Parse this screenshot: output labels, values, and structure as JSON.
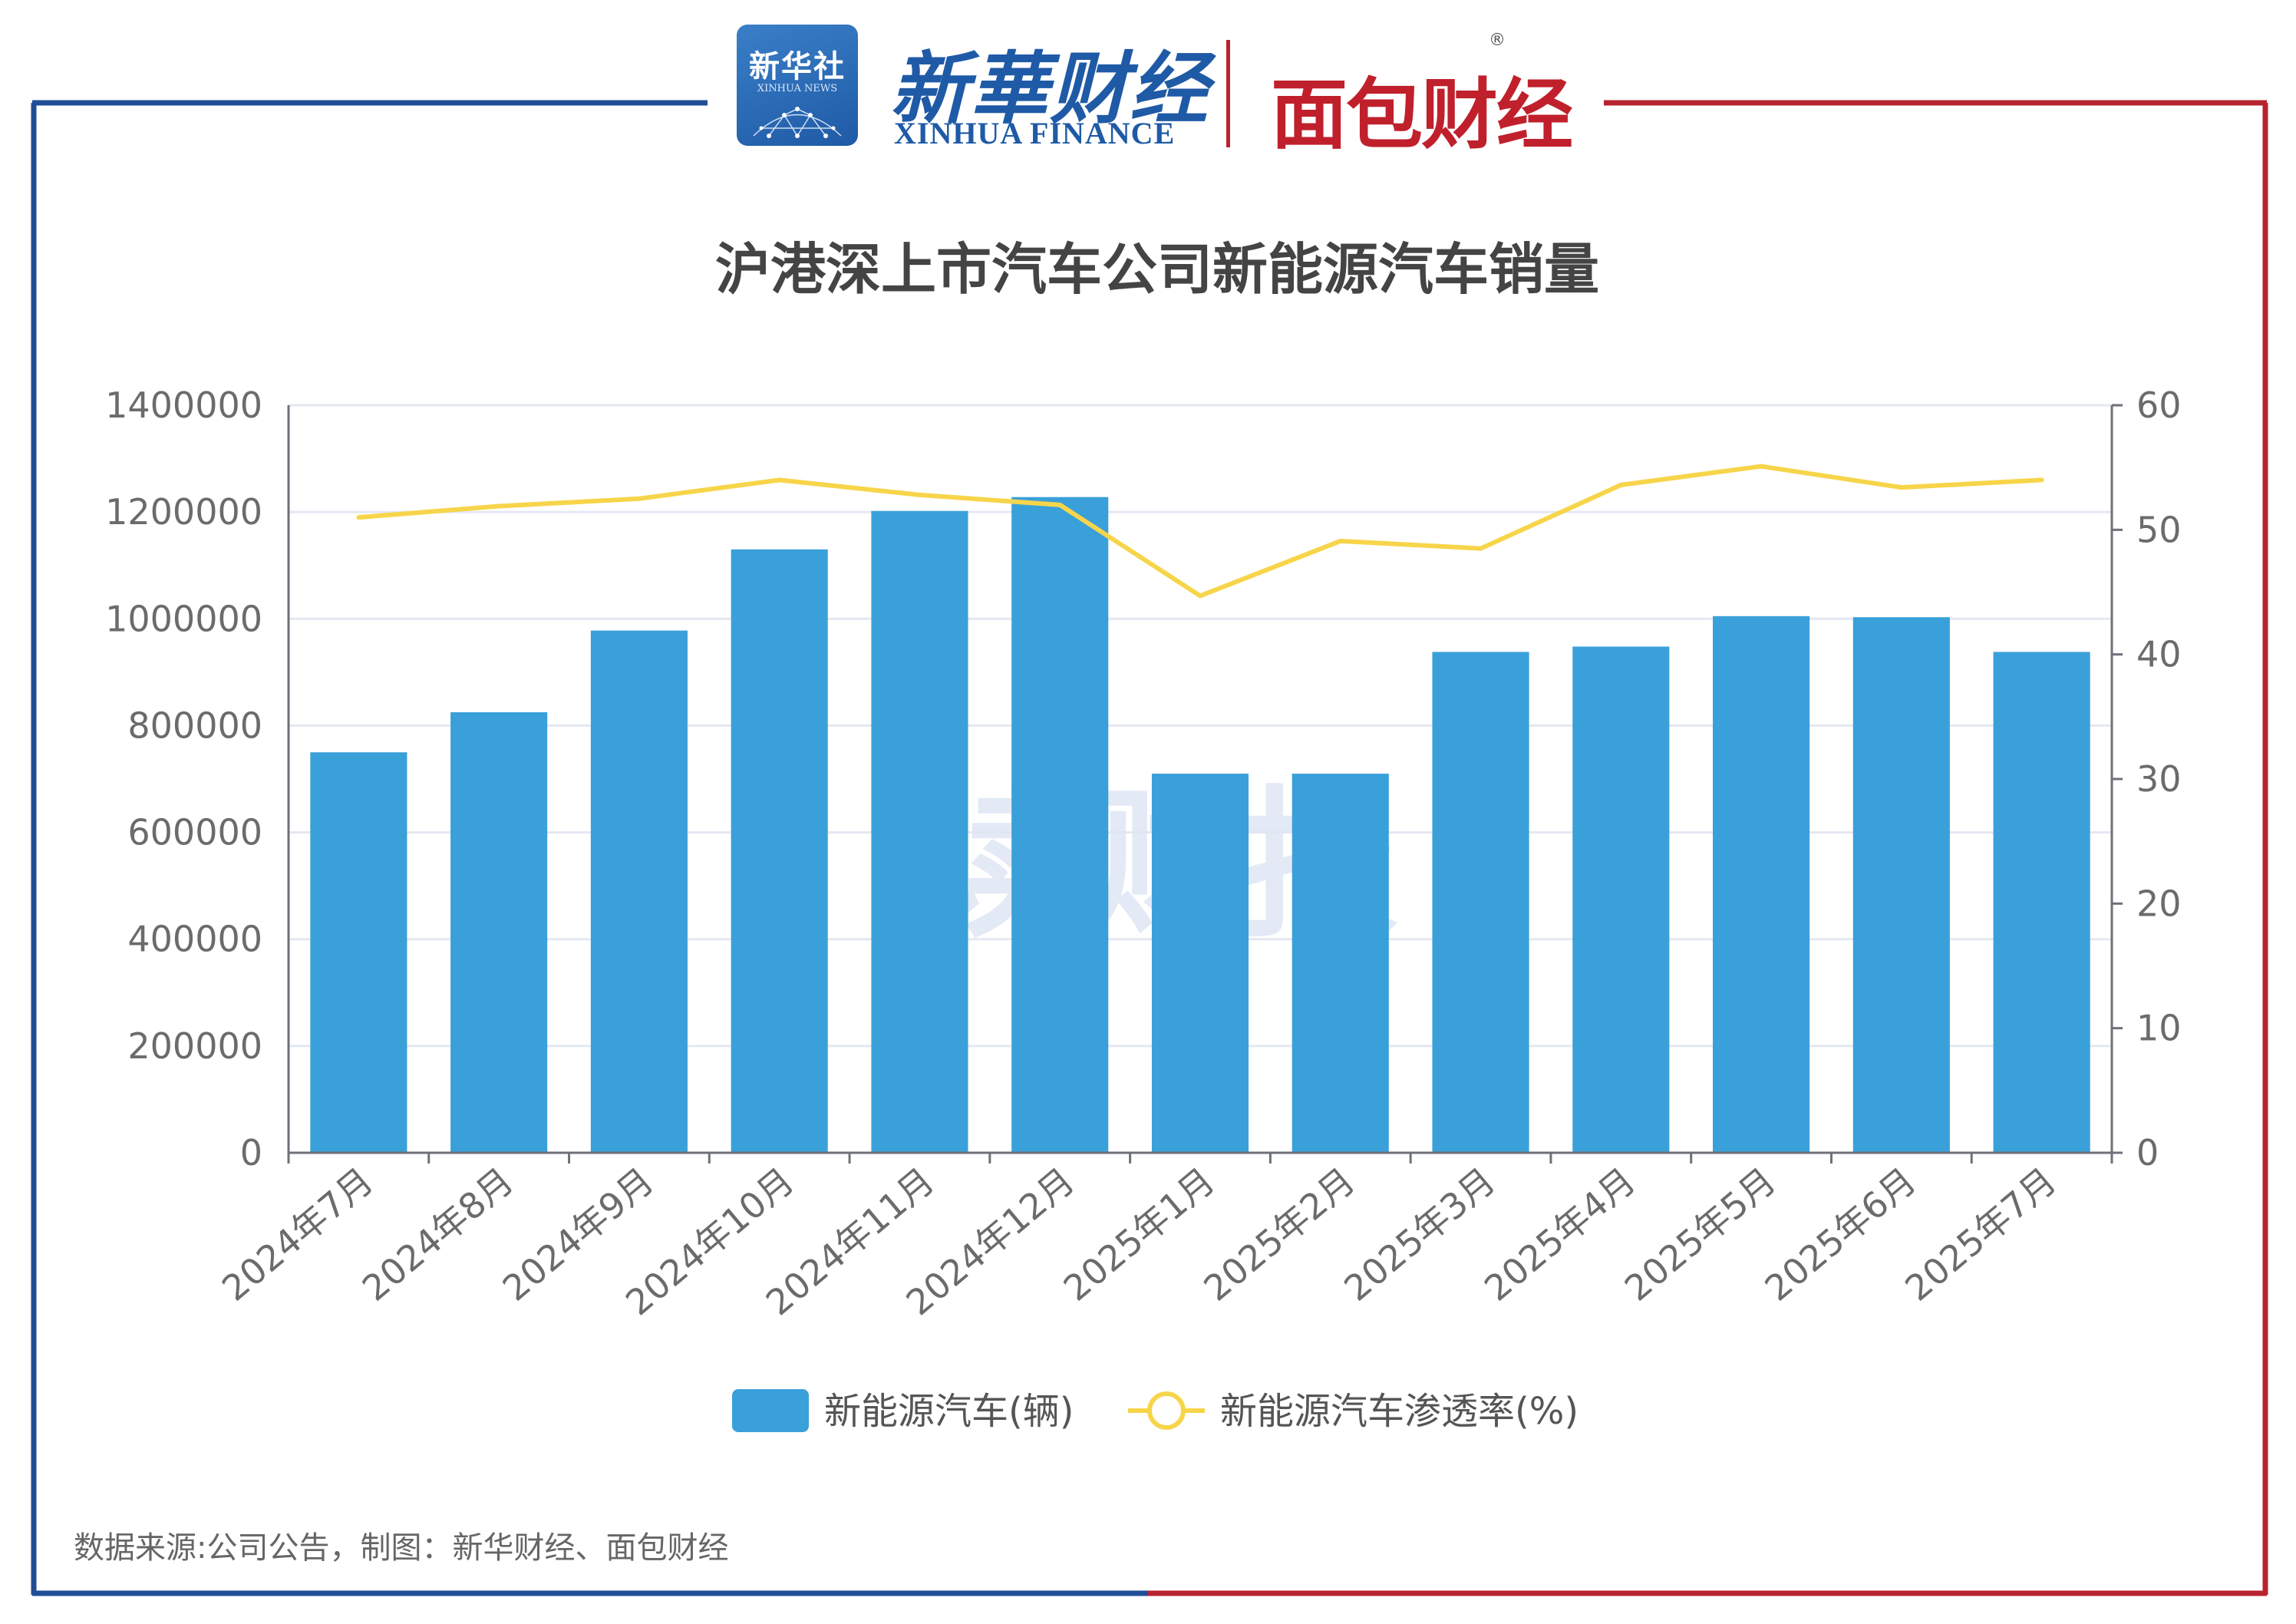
{
  "header": {
    "xinhua_badge": "新华社",
    "xinhua_badge_sub": "XINHUA NEWS",
    "xinhua_finance_cn": "新華财经",
    "xinhua_finance_en": "XINHUA FINANCE",
    "mianbao_logo": "面包财经",
    "registered_mark": "®"
  },
  "colors": {
    "frame_left": "#1f4e96",
    "frame_right": "#b7232e",
    "bar": "#3aa0d9",
    "line": "#f7d54a",
    "grid": "#e3e8f2",
    "axis_text": "#6b6b6b",
    "title": "#444444",
    "watermark": "#dde6f4"
  },
  "watermark": "读财报",
  "chart_data": {
    "type": "bar",
    "title": "沪港深上市汽车公司新能源汽车销量",
    "categories": [
      "2024年7月",
      "2024年8月",
      "2024年9月",
      "2024年10月",
      "2024年11月",
      "2024年12月",
      "2025年1月",
      "2025年2月",
      "2025年3月",
      "2025年4月",
      "2025年5月",
      "2025年6月",
      "2025年7月"
    ],
    "series": [
      {
        "name": "新能源汽车(辆)",
        "type": "bar",
        "axis": "left",
        "values": [
          750000,
          825000,
          978000,
          1130000,
          1202000,
          1228000,
          710000,
          710000,
          938000,
          948000,
          1005000,
          1003000,
          938000
        ]
      },
      {
        "name": "新能源汽车渗透率(%)",
        "type": "line",
        "axis": "right",
        "values": [
          51.0,
          51.9,
          52.5,
          54.0,
          52.8,
          52.0,
          44.7,
          49.1,
          48.5,
          53.6,
          55.1,
          53.4,
          54.0
        ]
      }
    ],
    "y_left": {
      "min": 0,
      "max": 1400000,
      "ticks": [
        "0",
        "200000",
        "400000",
        "600000",
        "800000",
        "1000000",
        "1200000",
        "1400000"
      ]
    },
    "y_right": {
      "min": 0,
      "max": 60,
      "ticks": [
        "0",
        "10",
        "20",
        "30",
        "40",
        "50",
        "60"
      ]
    },
    "grid": true,
    "legend_position": "bottom"
  },
  "footer": {
    "source": "数据来源:公司公告，制图：新华财经、面包财经"
  }
}
